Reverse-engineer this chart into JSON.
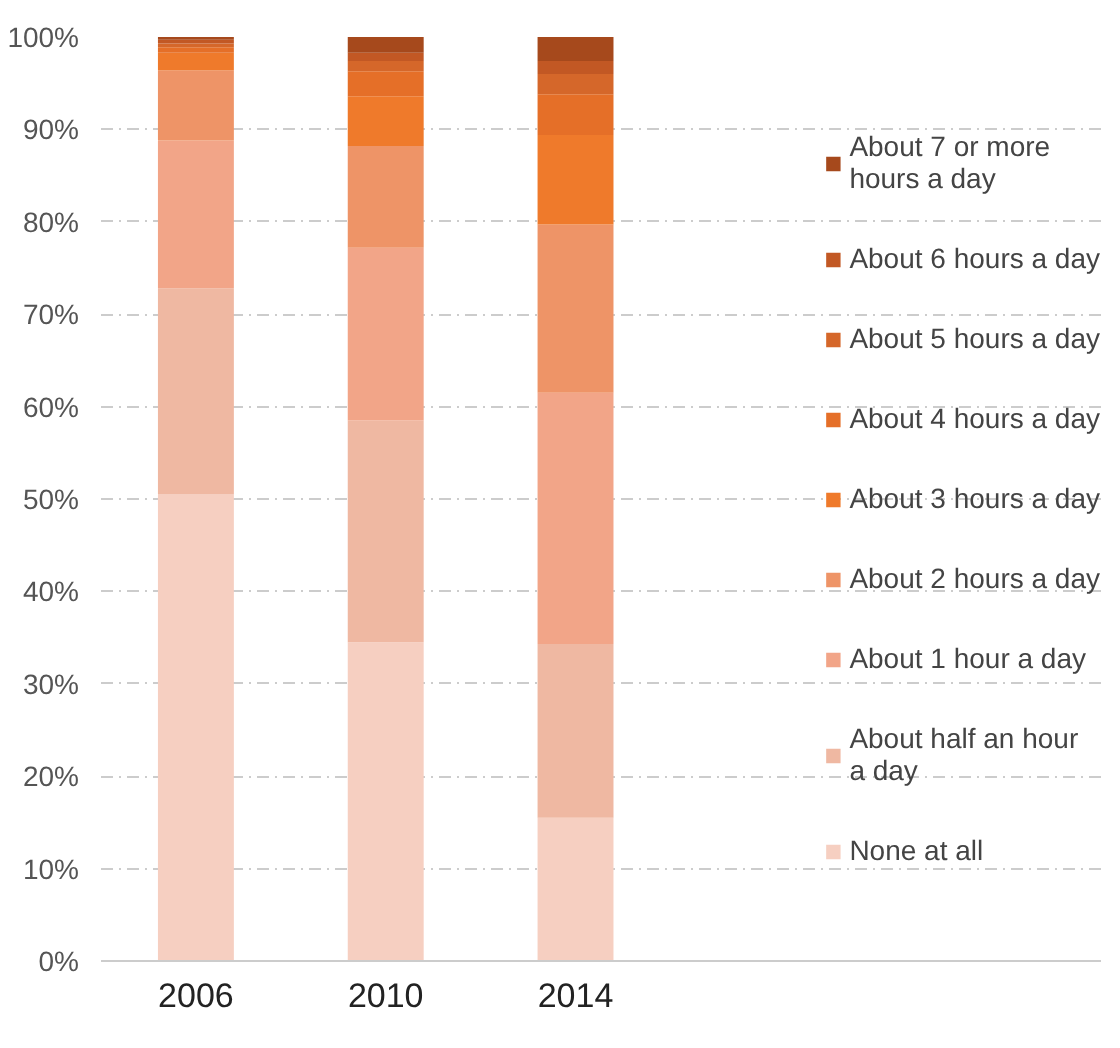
{
  "chart_data": {
    "type": "bar",
    "stacked": true,
    "categories": [
      "2006",
      "2010",
      "2014"
    ],
    "series": [
      {
        "name": "None at all",
        "color": "#f6cfc1",
        "values": [
          50.5,
          34.5,
          15.5
        ]
      },
      {
        "name": "About half an hour a day",
        "color": "#efb8a2",
        "values": [
          22.3,
          24.0,
          18.8
        ]
      },
      {
        "name": "About 1 hour a day",
        "color": "#f2a588",
        "values": [
          16.0,
          18.7,
          27.2
        ]
      },
      {
        "name": "About 2 hours a day",
        "color": "#ee9467",
        "values": [
          7.6,
          11.0,
          18.2
        ]
      },
      {
        "name": "About 3 hours a day",
        "color": "#ef7a2b",
        "values": [
          1.9,
          5.4,
          9.7
        ]
      },
      {
        "name": "About 4 hours a day",
        "color": "#e56f28",
        "values": [
          0.6,
          2.7,
          4.4
        ]
      },
      {
        "name": "About 5 hours a day",
        "color": "#d5672a",
        "values": [
          0.4,
          1.1,
          2.2
        ]
      },
      {
        "name": "About 6 hours a day",
        "color": "#c25824",
        "values": [
          0.4,
          0.9,
          1.4
        ]
      },
      {
        "name": "About 7 or more hours a day",
        "color": "#a6491c",
        "values": [
          0.3,
          1.7,
          2.6
        ]
      }
    ],
    "ylim": [
      0,
      100
    ],
    "yticks": [
      {
        "value": 0,
        "label": "0%"
      },
      {
        "value": 10,
        "label": "10%"
      },
      {
        "value": 20,
        "label": "20%"
      },
      {
        "value": 30,
        "label": "30%"
      },
      {
        "value": 40,
        "label": "40%"
      },
      {
        "value": 50,
        "label": "50%"
      },
      {
        "value": 60,
        "label": "60%"
      },
      {
        "value": 70,
        "label": "70%"
      },
      {
        "value": 80,
        "label": "80%"
      },
      {
        "value": 90,
        "label": "90%"
      },
      {
        "value": 100,
        "label": "100%"
      }
    ],
    "grid": "y",
    "legend": "right"
  }
}
